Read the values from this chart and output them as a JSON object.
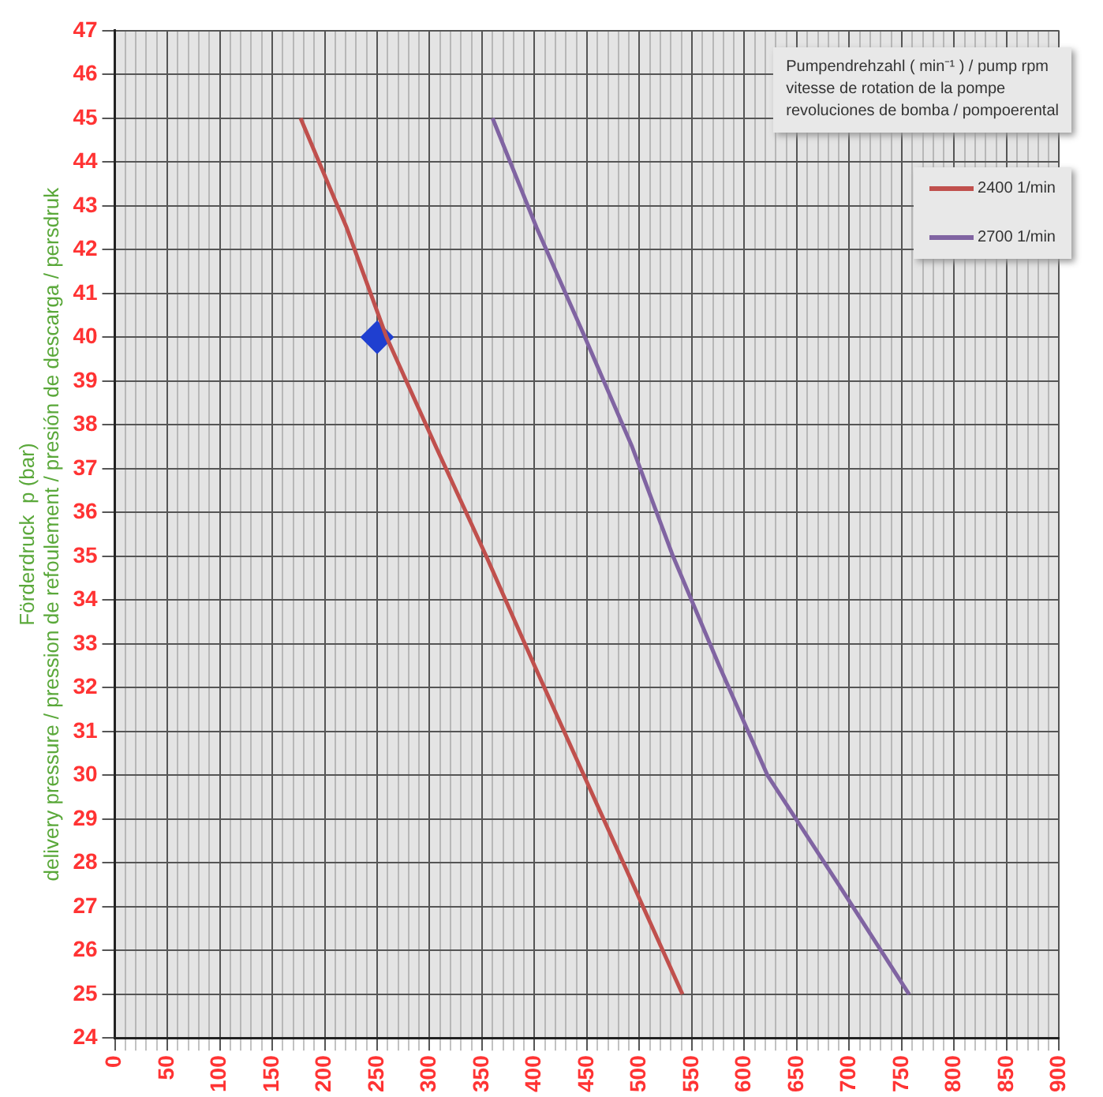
{
  "chart_data": {
    "type": "line",
    "ylabel": "Förderdruck  p (bar)\ndelivery pressure / pression de refoulement / presión de descarga / persdruk",
    "legend_title": "Pumpendrehzahl ( min⁻¹ )  /  pump rpm\nvitesse de rotation de la pompe\nrevoluciones de bomba  /  pompoerental",
    "legend": "top right",
    "grid": true,
    "marker": "none",
    "line_style": "solid",
    "xlim": [
      0,
      900
    ],
    "ylim": [
      24,
      47
    ],
    "xticks": [
      0,
      {
        "value": 10,
        "label": null
      },
      {
        "value": 20,
        "label": null
      },
      {
        "value": 30,
        "label": null
      },
      {
        "value": 40,
        "label": null
      },
      50,
      {
        "value": 60,
        "label": null
      },
      {
        "value": 70,
        "label": null
      },
      {
        "value": 80,
        "label": null
      },
      {
        "value": 90,
        "label": null
      },
      100,
      {
        "value": 110,
        "label": null
      },
      {
        "value": 120,
        "label": null
      },
      {
        "value": 130,
        "label": null
      },
      {
        "value": 140,
        "label": null
      },
      150,
      {
        "value": 160,
        "label": null
      },
      {
        "value": 170,
        "label": null
      },
      {
        "value": 180,
        "label": null
      },
      {
        "value": 190,
        "label": null
      },
      200,
      {
        "value": 210,
        "label": null
      },
      {
        "value": 220,
        "label": null
      },
      {
        "value": 230,
        "label": null
      },
      {
        "value": 240,
        "label": null
      },
      250,
      {
        "value": 260,
        "label": null
      },
      {
        "value": 270,
        "label": null
      },
      {
        "value": 280,
        "label": null
      },
      {
        "value": 290,
        "label": null
      },
      300,
      {
        "value": 310,
        "label": null
      },
      {
        "value": 320,
        "label": null
      },
      {
        "value": 330,
        "label": null
      },
      {
        "value": 340,
        "label": null
      },
      350,
      {
        "value": 360,
        "label": null
      },
      {
        "value": 370,
        "label": null
      },
      {
        "value": 380,
        "label": null
      },
      {
        "value": 390,
        "label": null
      },
      400,
      {
        "value": 410,
        "label": null
      },
      {
        "value": 420,
        "label": null
      },
      {
        "value": 430,
        "label": null
      },
      {
        "value": 440,
        "label": null
      },
      450,
      {
        "value": 460,
        "label": null
      },
      {
        "value": 470,
        "label": null
      },
      {
        "value": 480,
        "label": null
      },
      {
        "value": 490,
        "label": null
      },
      500,
      {
        "value": 510,
        "label": null
      },
      {
        "value": 520,
        "label": null
      },
      {
        "value": 530,
        "label": null
      },
      {
        "value": 540,
        "label": null
      },
      550,
      {
        "value": 560,
        "label": null
      },
      {
        "value": 570,
        "label": null
      },
      {
        "value": 580,
        "label": null
      },
      {
        "value": 590,
        "label": null
      },
      600,
      {
        "value": 610,
        "label": null
      },
      {
        "value": 620,
        "label": null
      },
      {
        "value": 630,
        "label": null
      },
      {
        "value": 640,
        "label": null
      },
      650,
      {
        "value": 660,
        "label": null
      },
      {
        "value": 670,
        "label": null
      },
      {
        "value": 680,
        "label": null
      },
      {
        "value": 690,
        "label": null
      },
      700,
      {
        "value": 710,
        "label": null
      },
      {
        "value": 720,
        "label": null
      },
      {
        "value": 730,
        "label": null
      },
      {
        "value": 740,
        "label": null
      },
      750,
      {
        "value": 760,
        "label": null
      },
      {
        "value": 770,
        "label": null
      },
      {
        "value": 780,
        "label": null
      },
      {
        "value": 790,
        "label": null
      },
      800,
      {
        "value": 810,
        "label": null
      },
      {
        "value": 820,
        "label": null
      },
      {
        "value": 830,
        "label": null
      },
      {
        "value": 840,
        "label": null
      },
      850,
      {
        "value": 860,
        "label": null
      },
      {
        "value": 870,
        "label": null
      },
      {
        "value": 880,
        "label": null
      },
      {
        "value": 890,
        "label": null
      },
      900
    ],
    "yticks": [
      24,
      25,
      26,
      27,
      28,
      29,
      30,
      31,
      32,
      33,
      34,
      35,
      36,
      37,
      38,
      39,
      40,
      41,
      42,
      43,
      44,
      45,
      46,
      47
    ],
    "series": [
      {
        "name": "2400 1/min",
        "color": "#c0504d",
        "x": [
          177,
          221,
          259,
          306,
          354,
          400,
          447,
          494,
          541
        ],
        "values": [
          45,
          42.5,
          40,
          37.5,
          35,
          32.5,
          30,
          27.5,
          25
        ]
      },
      {
        "name": "2700 1/min",
        "color": "#8064a2",
        "x": [
          360,
          402,
          448,
          493,
          532,
          576,
          622,
          690,
          757
        ],
        "values": [
          45,
          42.5,
          40,
          37.5,
          35,
          32.5,
          30,
          27.5,
          25
        ]
      },
      {
        "type": "scatter",
        "marker": "diamond",
        "color": "#1f3fd0",
        "x": [
          250
        ],
        "values": [
          40
        ]
      }
    ]
  }
}
